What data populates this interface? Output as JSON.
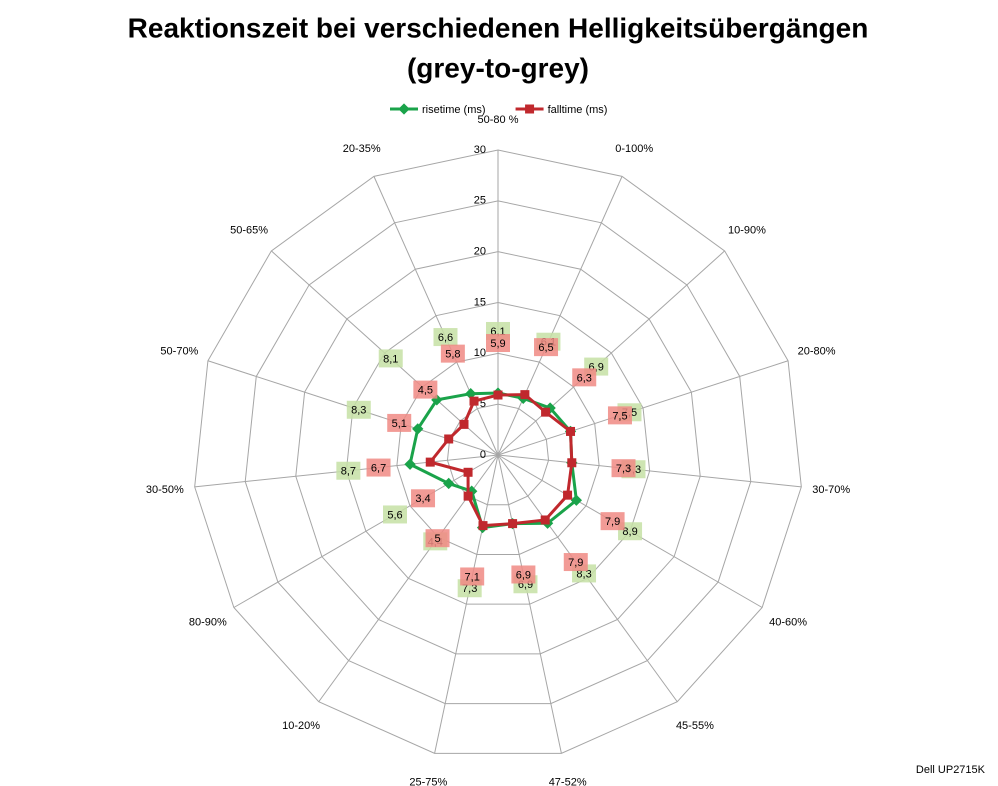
{
  "chart_data": {
    "type": "radar",
    "title": "Reaktionszeit bei verschiedenen Helligkeitsübergängen",
    "subtitle": "(grey-to-grey)",
    "footnote": "Dell UP2715K",
    "categories": [
      "50-80 %",
      "0-100%",
      "10-90%",
      "20-80%",
      "30-70%",
      "40-60%",
      "45-55%",
      "47-52%",
      "25-75%",
      "10-20%",
      "80-90%",
      "30-50%",
      "50-70%",
      "50-65%",
      "20-35%"
    ],
    "series": [
      {
        "name": "risetime (ms)",
        "color": "#1aa34a",
        "label_color": "#c6e0a4",
        "values": [
          6.1,
          6.1,
          6.9,
          7.5,
          7.3,
          8.9,
          8.3,
          6.9,
          7.3,
          4.4,
          5.6,
          8.7,
          8.3,
          8.1,
          6.6
        ],
        "value_labels": [
          "6,1",
          "6,1",
          "6,9",
          "7,5",
          "7,3",
          "8,9",
          "8,3",
          "6,9",
          "7,3",
          "4,4",
          "5,6",
          "8,7",
          "8,3",
          "8,1",
          "6,6"
        ]
      },
      {
        "name": "falltime (ms)",
        "color": "#c0282d",
        "label_color": "#f08a84",
        "values": [
          5.9,
          6.5,
          6.3,
          7.5,
          7.3,
          7.9,
          7.9,
          6.9,
          7.1,
          5,
          3.4,
          6.7,
          5.1,
          4.5,
          5.8
        ],
        "value_labels": [
          "5,9",
          "6,5",
          "6,3",
          "7,5",
          "7,3",
          "7,9",
          "7,9",
          "6,9",
          "7,1",
          "5",
          "3,4",
          "6,7",
          "5,1",
          "4,5",
          "5,8"
        ]
      }
    ],
    "ylim": [
      0,
      30
    ],
    "yticks": [
      0,
      5,
      10,
      15,
      20,
      25,
      30
    ],
    "grid": true,
    "legend": "top"
  }
}
